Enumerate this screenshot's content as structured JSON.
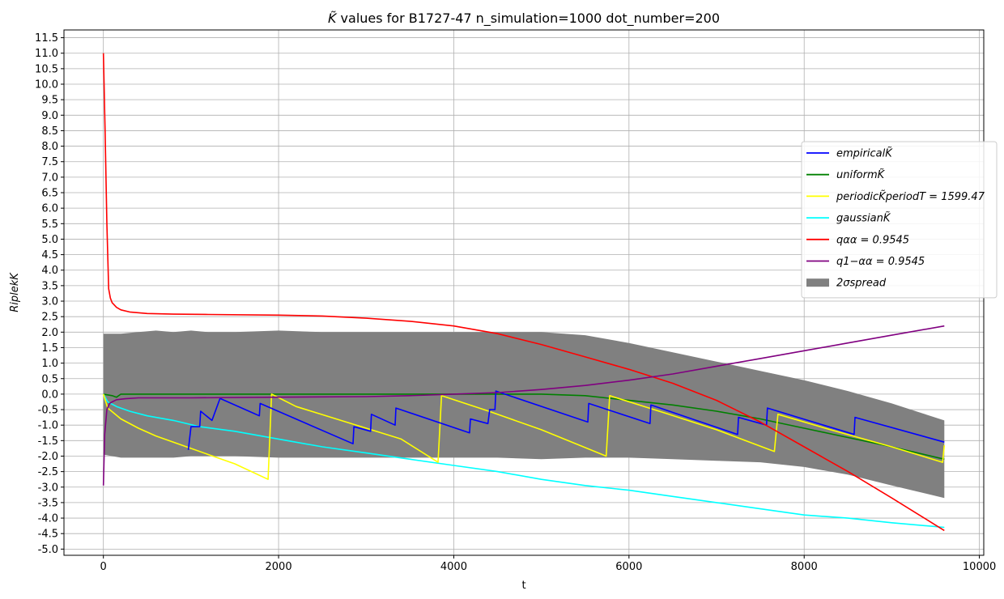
{
  "chart_data": {
    "type": "line",
    "title_prefix": "K̃",
    "title_rest": " values for B1727-47 n_simulation=1000 dot_number=200",
    "xlabel": "t",
    "ylabel": "RiplekK",
    "xlim": [
      -450,
      10050
    ],
    "ylim": [
      -5.2,
      11.75
    ],
    "grid": true,
    "legend_position": "right",
    "x_ticks": [
      0,
      2000,
      4000,
      6000,
      8000,
      10000
    ],
    "x_tick_labels": [
      "0",
      "2000",
      "4000",
      "6000",
      "8000",
      "10000"
    ],
    "y_ticks": [
      -5.0,
      -4.5,
      -4.0,
      -3.5,
      -3.0,
      -2.5,
      -2.0,
      -1.5,
      -1.0,
      -0.5,
      0.0,
      0.5,
      1.0,
      1.5,
      2.0,
      2.5,
      3.0,
      3.5,
      4.0,
      4.5,
      5.0,
      5.5,
      6.0,
      6.5,
      7.0,
      7.5,
      8.0,
      8.5,
      9.0,
      9.5,
      10.0,
      10.5,
      11.0,
      11.5
    ],
    "y_tick_labels": [
      "-5.0",
      "-4.5",
      "-4.0",
      "-3.5",
      "-3.0",
      "-2.5",
      "-2.0",
      "-1.5",
      "-1.0",
      "-0.5",
      "0.0",
      "0.5",
      "1.0",
      "1.5",
      "2.0",
      "2.5",
      "3.0",
      "3.5",
      "4.0",
      "4.5",
      "5.0",
      "5.5",
      "6.0",
      "6.5",
      "7.0",
      "7.5",
      "8.0",
      "8.5",
      "9.0",
      "9.5",
      "10.0",
      "10.5",
      "11.0",
      "11.5"
    ],
    "band": {
      "name": "2σspread",
      "color": "#808080",
      "x": [
        0,
        100,
        200,
        400,
        600,
        800,
        1000,
        1200,
        1500,
        2000,
        2500,
        3000,
        3500,
        4000,
        4500,
        5000,
        5500,
        6000,
        6500,
        7000,
        7500,
        8000,
        8500,
        9000,
        9600
      ],
      "upper": [
        1.95,
        1.95,
        1.95,
        2.0,
        2.05,
        2.0,
        2.05,
        2.0,
        2.0,
        2.05,
        2.0,
        2.0,
        2.0,
        2.0,
        2.0,
        2.0,
        1.9,
        1.65,
        1.35,
        1.05,
        0.75,
        0.45,
        0.1,
        -0.3,
        -0.85
      ],
      "lower": [
        -1.95,
        -2.0,
        -2.05,
        -2.05,
        -2.05,
        -2.05,
        -2.0,
        -2.0,
        -2.0,
        -2.05,
        -2.05,
        -2.05,
        -2.05,
        -2.05,
        -2.05,
        -2.1,
        -2.05,
        -2.05,
        -2.1,
        -2.15,
        -2.2,
        -2.35,
        -2.6,
        -2.95,
        -3.35
      ]
    },
    "series": [
      {
        "name": "empiricalK̃",
        "color": "#0000ff",
        "x": [
          970,
          1000,
          1100,
          1110,
          1240,
          1330,
          1340,
          1780,
          1790,
          2850,
          2860,
          3050,
          3060,
          3330,
          3340,
          4180,
          4190,
          4390,
          4410,
          4470,
          4480,
          5530,
          5540,
          6240,
          6250,
          7240,
          7250,
          7570,
          7580,
          8570,
          8580,
          9600
        ],
        "y": [
          -1.8,
          -1.05,
          -1.05,
          -0.55,
          -0.85,
          -0.15,
          -0.15,
          -0.7,
          -0.3,
          -1.6,
          -1.05,
          -1.2,
          -0.65,
          -1.0,
          -0.45,
          -1.25,
          -0.8,
          -0.95,
          -0.5,
          -0.5,
          0.1,
          -0.9,
          -0.3,
          -0.95,
          -0.35,
          -1.3,
          -0.75,
          -1.0,
          -0.45,
          -1.3,
          -0.75,
          -1.55
        ]
      },
      {
        "name": "uniformK̃",
        "color": "#008000",
        "x": [
          0,
          100,
          150,
          200,
          500,
          1000,
          2000,
          3000,
          4000,
          5000,
          5500,
          6000,
          6500,
          7000,
          7500,
          8000,
          8500,
          9000,
          9600
        ],
        "y": [
          0.0,
          -0.05,
          -0.1,
          0.0,
          0.0,
          0.0,
          0.0,
          0.0,
          0.0,
          0.0,
          -0.05,
          -0.2,
          -0.35,
          -0.55,
          -0.8,
          -1.1,
          -1.4,
          -1.7,
          -2.1
        ]
      },
      {
        "name": "periodicK̃periodT=1599.47",
        "color": "#ffff00",
        "x": [
          0,
          50,
          200,
          400,
          600,
          900,
          1200,
          1500,
          1880,
          1920,
          2200,
          2600,
          3000,
          3400,
          3820,
          3860,
          4400,
          5000,
          5740,
          5780,
          6400,
          7000,
          7660,
          7700,
          8300,
          9000,
          9580,
          9600
        ],
        "y": [
          0.0,
          -0.45,
          -0.8,
          -1.1,
          -1.35,
          -1.65,
          -1.95,
          -2.25,
          -2.75,
          0.0,
          -0.4,
          -0.75,
          -1.1,
          -1.45,
          -2.2,
          -0.05,
          -0.55,
          -1.15,
          -2.0,
          -0.05,
          -0.6,
          -1.15,
          -1.85,
          -0.65,
          -1.15,
          -1.7,
          -2.2,
          -1.65
        ]
      },
      {
        "name": "gaussianK̃",
        "color": "#00ffff",
        "x": [
          0,
          50,
          150,
          300,
          500,
          800,
          1100,
          1500,
          2000,
          2500,
          3000,
          3500,
          4000,
          4500,
          5000,
          5500,
          6000,
          6500,
          7000,
          7500,
          8000,
          8500,
          9000,
          9600
        ],
        "y": [
          0.0,
          -0.25,
          -0.4,
          -0.55,
          -0.7,
          -0.85,
          -1.05,
          -1.2,
          -1.45,
          -1.7,
          -1.9,
          -2.1,
          -2.3,
          -2.5,
          -2.75,
          -2.95,
          -3.1,
          -3.3,
          -3.5,
          -3.7,
          -3.9,
          -4.0,
          -4.15,
          -4.3
        ]
      },
      {
        "name": "qαα=0.9545",
        "color": "#ff0000",
        "x": [
          0,
          20,
          40,
          60,
          80,
          100,
          150,
          200,
          300,
          500,
          800,
          1200,
          2000,
          2500,
          3000,
          3500,
          4000,
          4500,
          5000,
          5500,
          6000,
          6500,
          7000,
          7500,
          8000,
          8500,
          9000,
          9600
        ],
        "y": [
          11.0,
          8.5,
          5.5,
          3.4,
          3.1,
          2.95,
          2.8,
          2.72,
          2.65,
          2.6,
          2.58,
          2.57,
          2.55,
          2.52,
          2.45,
          2.35,
          2.2,
          1.95,
          1.6,
          1.2,
          0.8,
          0.35,
          -0.2,
          -0.9,
          -1.7,
          -2.5,
          -3.35,
          -4.4
        ]
      },
      {
        "name": "q1−αα=0.9545",
        "color": "#800080",
        "x": [
          0,
          15,
          40,
          70,
          100,
          150,
          250,
          400,
          700,
          1000,
          2000,
          3000,
          3500,
          4000,
          4500,
          5000,
          5500,
          6000,
          6500,
          7000,
          7500,
          8000,
          8500,
          9000,
          9600
        ],
        "y": [
          -2.95,
          -1.3,
          -0.5,
          -0.3,
          -0.25,
          -0.18,
          -0.15,
          -0.12,
          -0.12,
          -0.12,
          -0.1,
          -0.08,
          -0.05,
          0.0,
          0.05,
          0.15,
          0.28,
          0.45,
          0.65,
          0.9,
          1.15,
          1.4,
          1.65,
          1.9,
          2.2
        ]
      }
    ],
    "legend_items": [
      {
        "label": "empiricalK̃",
        "color": "#0000ff",
        "kind": "line"
      },
      {
        "label": "uniformK̃",
        "color": "#008000",
        "kind": "line"
      },
      {
        "label": "periodicK̃periodT = 1599.47",
        "color": "#ffff00",
        "kind": "line"
      },
      {
        "label": "gaussianK̃",
        "color": "#00ffff",
        "kind": "line"
      },
      {
        "label": "qαα = 0.9545",
        "color": "#ff0000",
        "kind": "line"
      },
      {
        "label": "q1−αα = 0.9545",
        "color": "#800080",
        "kind": "line"
      },
      {
        "label": "2σspread",
        "color": "#808080",
        "kind": "patch"
      }
    ]
  }
}
